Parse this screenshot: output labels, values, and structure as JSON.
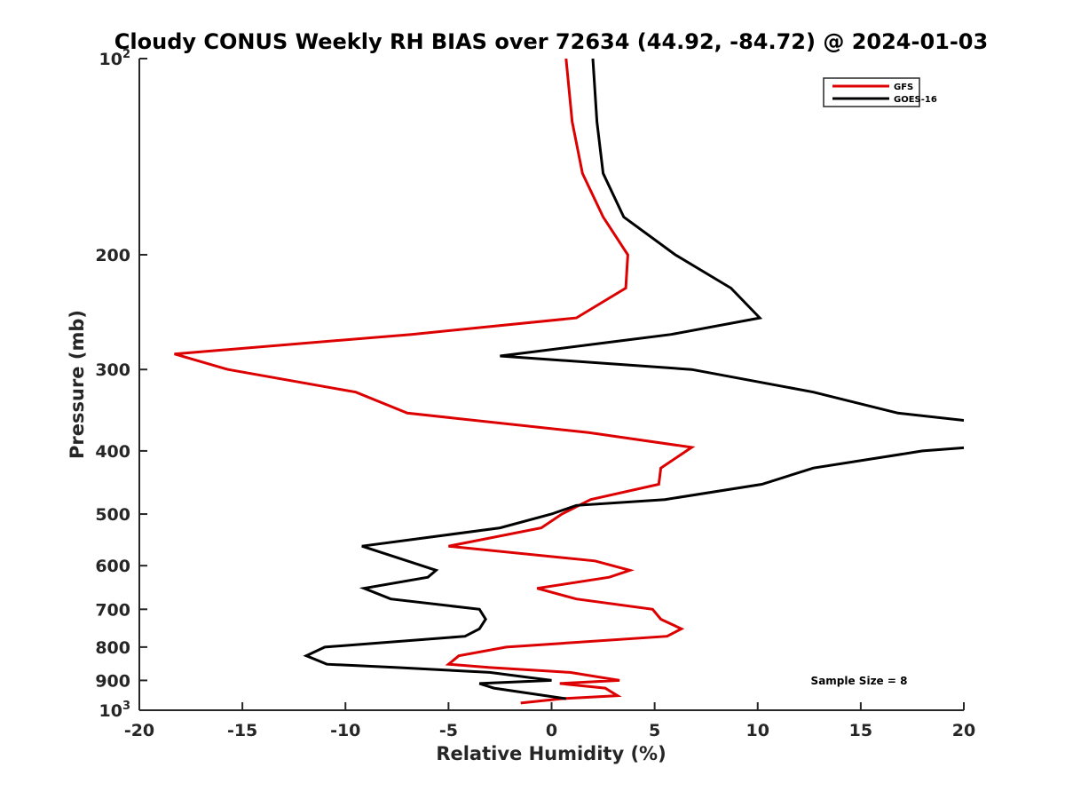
{
  "chart_data": {
    "type": "line",
    "title": "Cloudy CONUS Weekly RH BIAS over 72634 (44.92, -84.72) @ 2024-01-03",
    "xlabel": "Relative Humidity (%)",
    "ylabel": "Pressure (mb)",
    "xlim": [
      -20,
      20
    ],
    "ylim": [
      100,
      1000
    ],
    "y_scale": "log",
    "y_reversed": true,
    "grid": false,
    "legend_position": "top-right",
    "x_ticks": [
      -20,
      -15,
      -10,
      -5,
      0,
      5,
      10,
      15,
      20
    ],
    "y_ticks": [
      {
        "value": 100,
        "base": "10",
        "exp": "2"
      },
      {
        "value": 200,
        "label": "200"
      },
      {
        "value": 300,
        "label": "300"
      },
      {
        "value": 400,
        "label": "400"
      },
      {
        "value": 500,
        "label": "500"
      },
      {
        "value": 600,
        "label": "600"
      },
      {
        "value": 700,
        "label": "700"
      },
      {
        "value": 800,
        "label": "800"
      },
      {
        "value": 900,
        "label": "900"
      },
      {
        "value": 1000,
        "base": "10",
        "exp": "3"
      }
    ],
    "annotation": "Sample Size = 8",
    "series": [
      {
        "name": "GFS",
        "color": "#dd0000",
        "points": [
          {
            "x": 0.7,
            "y": 100
          },
          {
            "x": 1.0,
            "y": 125
          },
          {
            "x": 1.5,
            "y": 150
          },
          {
            "x": 2.5,
            "y": 175
          },
          {
            "x": 3.7,
            "y": 200
          },
          {
            "x": 3.6,
            "y": 225
          },
          {
            "x": 1.2,
            "y": 250
          },
          {
            "x": -6.8,
            "y": 265
          },
          {
            "x": -18.3,
            "y": 284
          },
          {
            "x": -15.7,
            "y": 300
          },
          {
            "x": -9.5,
            "y": 325
          },
          {
            "x": -7.0,
            "y": 350
          },
          {
            "x": 1.8,
            "y": 375
          },
          {
            "x": 6.8,
            "y": 395
          },
          {
            "x": 5.3,
            "y": 425
          },
          {
            "x": 5.2,
            "y": 450
          },
          {
            "x": 1.9,
            "y": 475
          },
          {
            "x": 0.5,
            "y": 500
          },
          {
            "x": -0.5,
            "y": 525
          },
          {
            "x": -5.0,
            "y": 560
          },
          {
            "x": 2.1,
            "y": 590
          },
          {
            "x": 3.8,
            "y": 610
          },
          {
            "x": 2.8,
            "y": 625
          },
          {
            "x": -0.7,
            "y": 650
          },
          {
            "x": 1.2,
            "y": 675
          },
          {
            "x": 4.9,
            "y": 700
          },
          {
            "x": 5.3,
            "y": 725
          },
          {
            "x": 6.3,
            "y": 750
          },
          {
            "x": 5.6,
            "y": 770
          },
          {
            "x": -2.2,
            "y": 800
          },
          {
            "x": -4.5,
            "y": 825
          },
          {
            "x": -5.0,
            "y": 850
          },
          {
            "x": -3.0,
            "y": 860
          },
          {
            "x": 0.9,
            "y": 875
          },
          {
            "x": 3.3,
            "y": 900
          },
          {
            "x": 0.4,
            "y": 910
          },
          {
            "x": 2.6,
            "y": 925
          },
          {
            "x": 3.2,
            "y": 950
          },
          {
            "x": 0.5,
            "y": 960
          },
          {
            "x": -1.5,
            "y": 975
          }
        ]
      },
      {
        "name": "GOES-16",
        "color": "#000000",
        "points": [
          {
            "x": 2.0,
            "y": 100
          },
          {
            "x": 2.2,
            "y": 125
          },
          {
            "x": 2.5,
            "y": 150
          },
          {
            "x": 3.5,
            "y": 175
          },
          {
            "x": 6.0,
            "y": 200
          },
          {
            "x": 8.7,
            "y": 225
          },
          {
            "x": 10.1,
            "y": 250
          },
          {
            "x": 5.8,
            "y": 265
          },
          {
            "x": -2.5,
            "y": 286
          },
          {
            "x": 6.8,
            "y": 300
          },
          {
            "x": 12.7,
            "y": 325
          },
          {
            "x": 16.8,
            "y": 350
          },
          {
            "x": 20.3,
            "y": 360
          },
          {
            "x": 20.3,
            "y": 395
          },
          {
            "x": 18.0,
            "y": 400
          },
          {
            "x": 12.7,
            "y": 425
          },
          {
            "x": 10.2,
            "y": 450
          },
          {
            "x": 5.5,
            "y": 475
          },
          {
            "x": 1.2,
            "y": 485
          },
          {
            "x": 0.0,
            "y": 500
          },
          {
            "x": -2.5,
            "y": 525
          },
          {
            "x": -9.2,
            "y": 560
          },
          {
            "x": -7.0,
            "y": 590
          },
          {
            "x": -5.6,
            "y": 610
          },
          {
            "x": -6.0,
            "y": 625
          },
          {
            "x": -9.1,
            "y": 650
          },
          {
            "x": -7.8,
            "y": 675
          },
          {
            "x": -3.5,
            "y": 700
          },
          {
            "x": -3.2,
            "y": 725
          },
          {
            "x": -3.5,
            "y": 750
          },
          {
            "x": -4.2,
            "y": 770
          },
          {
            "x": -11.0,
            "y": 800
          },
          {
            "x": -11.9,
            "y": 825
          },
          {
            "x": -10.9,
            "y": 850
          },
          {
            "x": -7.5,
            "y": 860
          },
          {
            "x": -3.0,
            "y": 875
          },
          {
            "x": 0.0,
            "y": 900
          },
          {
            "x": -3.5,
            "y": 910
          },
          {
            "x": -2.8,
            "y": 925
          },
          {
            "x": -0.3,
            "y": 950
          },
          {
            "x": 0.7,
            "y": 960
          }
        ]
      }
    ]
  }
}
